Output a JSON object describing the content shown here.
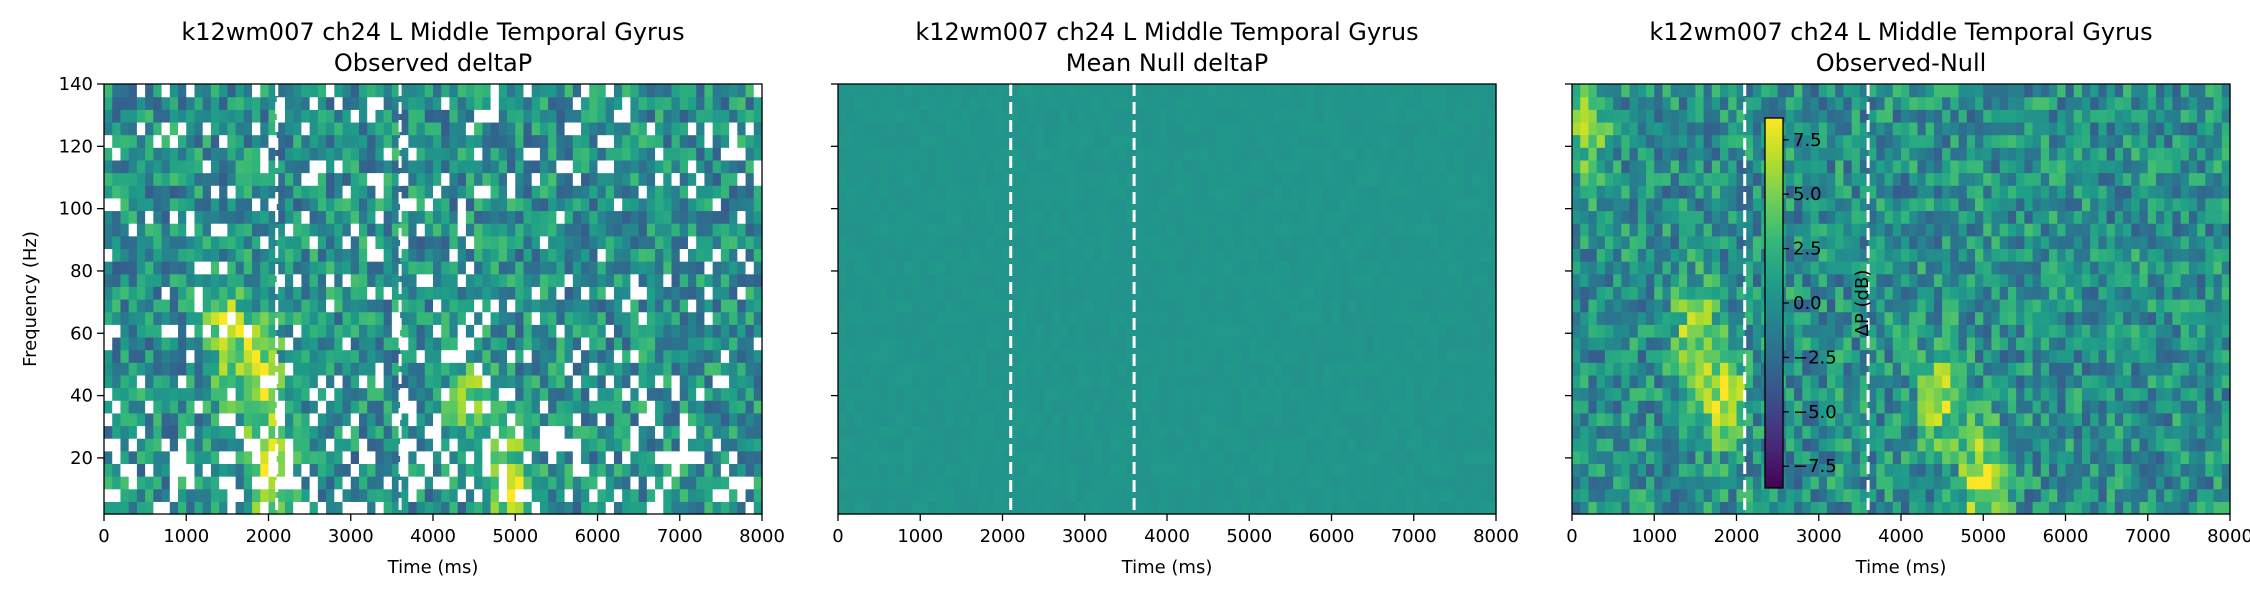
{
  "colormap": "viridis",
  "colors": {
    "viridis": [
      "#440154",
      "#482878",
      "#3e4989",
      "#31688e",
      "#26828e",
      "#1f9e89",
      "#35b779",
      "#6ece58",
      "#b5de2b",
      "#fde725"
    ],
    "event_line": "#ffffff"
  },
  "chart_data": [
    {
      "type": "heatmap",
      "title": "k12wm007 ch24 L Middle Temporal Gyrus",
      "subtitle": "Observed deltaP",
      "xlabel": "Time (ms)",
      "ylabel": "Frequency (Hz)",
      "xlim": [
        0,
        8000
      ],
      "ylim": [
        2,
        140
      ],
      "xticks": [
        "0",
        "1000",
        "2000",
        "3000",
        "4000",
        "5000",
        "6000",
        "7000",
        "8000"
      ],
      "yticks": [
        "20",
        "40",
        "60",
        "80",
        "100",
        "120",
        "140"
      ],
      "event_lines_ms": [
        2100,
        3600
      ],
      "has_masked_cells": true,
      "color_range": [
        -8.5,
        8.5
      ],
      "hotspots": [
        {
          "time_ms": 1500,
          "freq_hz": 60,
          "value": 6
        },
        {
          "time_ms": 1900,
          "freq_hz": 45,
          "value": 7
        },
        {
          "time_ms": 2000,
          "freq_hz": 15,
          "value": 6
        },
        {
          "time_ms": 4500,
          "freq_hz": 35,
          "value": 5
        },
        {
          "time_ms": 5000,
          "freq_hz": 10,
          "value": 7
        }
      ]
    },
    {
      "type": "heatmap",
      "title": "k12wm007 ch24 L Middle Temporal Gyrus",
      "subtitle": "Mean Null deltaP",
      "xlabel": "Time (ms)",
      "ylabel": "",
      "xlim": [
        0,
        8000
      ],
      "ylim": [
        2,
        140
      ],
      "xticks": [
        "0",
        "1000",
        "2000",
        "3000",
        "4000",
        "5000",
        "6000",
        "7000",
        "8000"
      ],
      "yticks": [],
      "event_lines_ms": [
        2100,
        3600
      ],
      "has_masked_cells": false,
      "color_range": [
        -8.5,
        8.5
      ],
      "hotspots": []
    },
    {
      "type": "heatmap",
      "title": "k12wm007 ch24 L Middle Temporal Gyrus",
      "subtitle": "Observed-Null",
      "xlabel": "Time (ms)",
      "ylabel": "",
      "xlim": [
        0,
        8000
      ],
      "ylim": [
        2,
        140
      ],
      "xticks": [
        "0",
        "1000",
        "2000",
        "3000",
        "4000",
        "5000",
        "6000",
        "7000",
        "8000"
      ],
      "yticks": [],
      "event_lines_ms": [
        2100,
        3600
      ],
      "has_masked_cells": false,
      "color_range": [
        -8.5,
        8.5
      ],
      "hotspots": [
        {
          "time_ms": 1500,
          "freq_hz": 60,
          "value": 6
        },
        {
          "time_ms": 1850,
          "freq_hz": 40,
          "value": 7
        },
        {
          "time_ms": 4500,
          "freq_hz": 40,
          "value": 6
        },
        {
          "time_ms": 5000,
          "freq_hz": 12,
          "value": 8
        },
        {
          "time_ms": 200,
          "freq_hz": 125,
          "value": 5
        }
      ],
      "colorbar": {
        "label": "ΔP (dB)",
        "range": [
          -8.5,
          8.5
        ],
        "ticks": [
          "7.5",
          "5.0",
          "2.5",
          "0.0",
          "−2.5",
          "−5.0",
          "−7.5"
        ],
        "tick_values": [
          7.5,
          5.0,
          2.5,
          0.0,
          -2.5,
          -5.0,
          -7.5
        ],
        "placement": "inside-right-of-event-line"
      }
    }
  ]
}
